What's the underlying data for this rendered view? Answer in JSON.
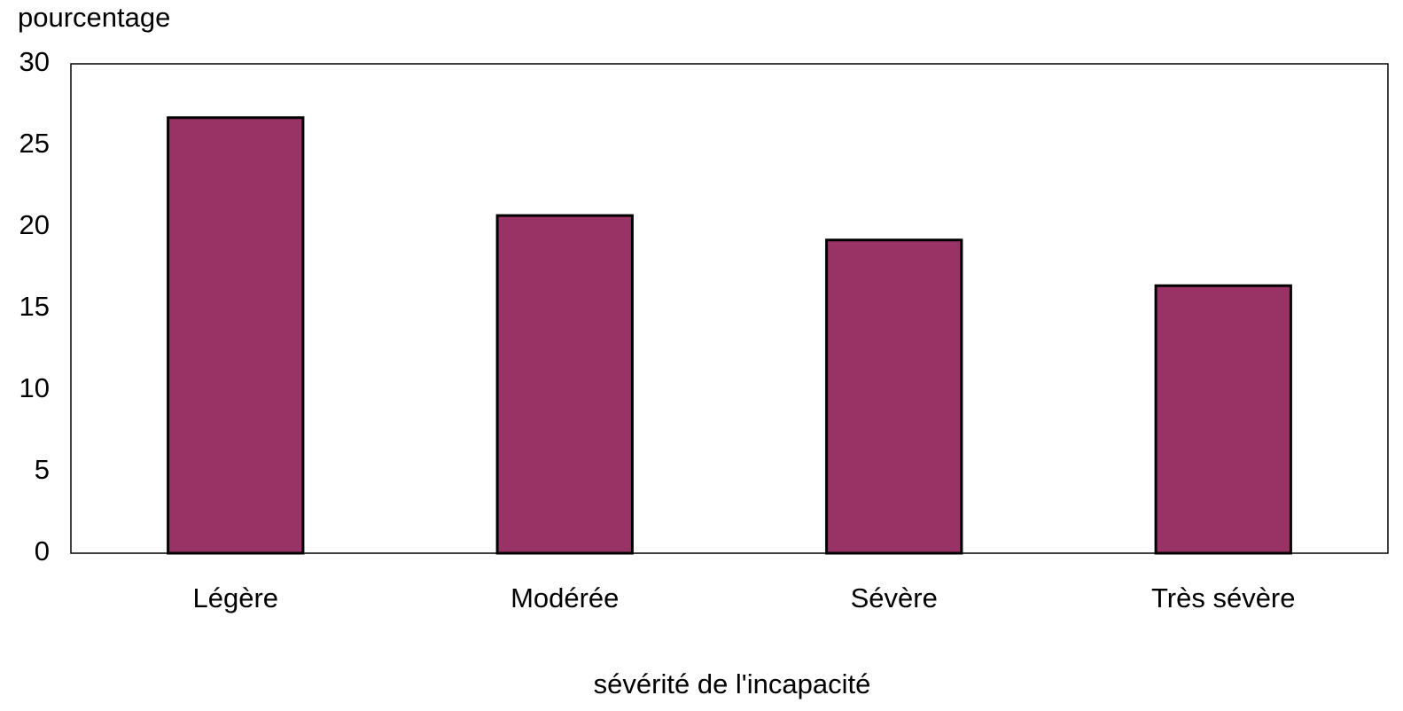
{
  "chart_data": {
    "type": "bar",
    "y_axis_label": "pourcentage",
    "x_axis_label": "sévérité de l'incapacité",
    "categories": [
      "Légère",
      "Modérée",
      "Sévère",
      "Très sévère"
    ],
    "values": [
      26.7,
      20.7,
      19.2,
      16.4
    ],
    "color": "#993366",
    "ylim": [
      0,
      30
    ],
    "yticks": [
      0,
      5,
      10,
      15,
      20,
      25,
      30
    ],
    "grid": false
  }
}
